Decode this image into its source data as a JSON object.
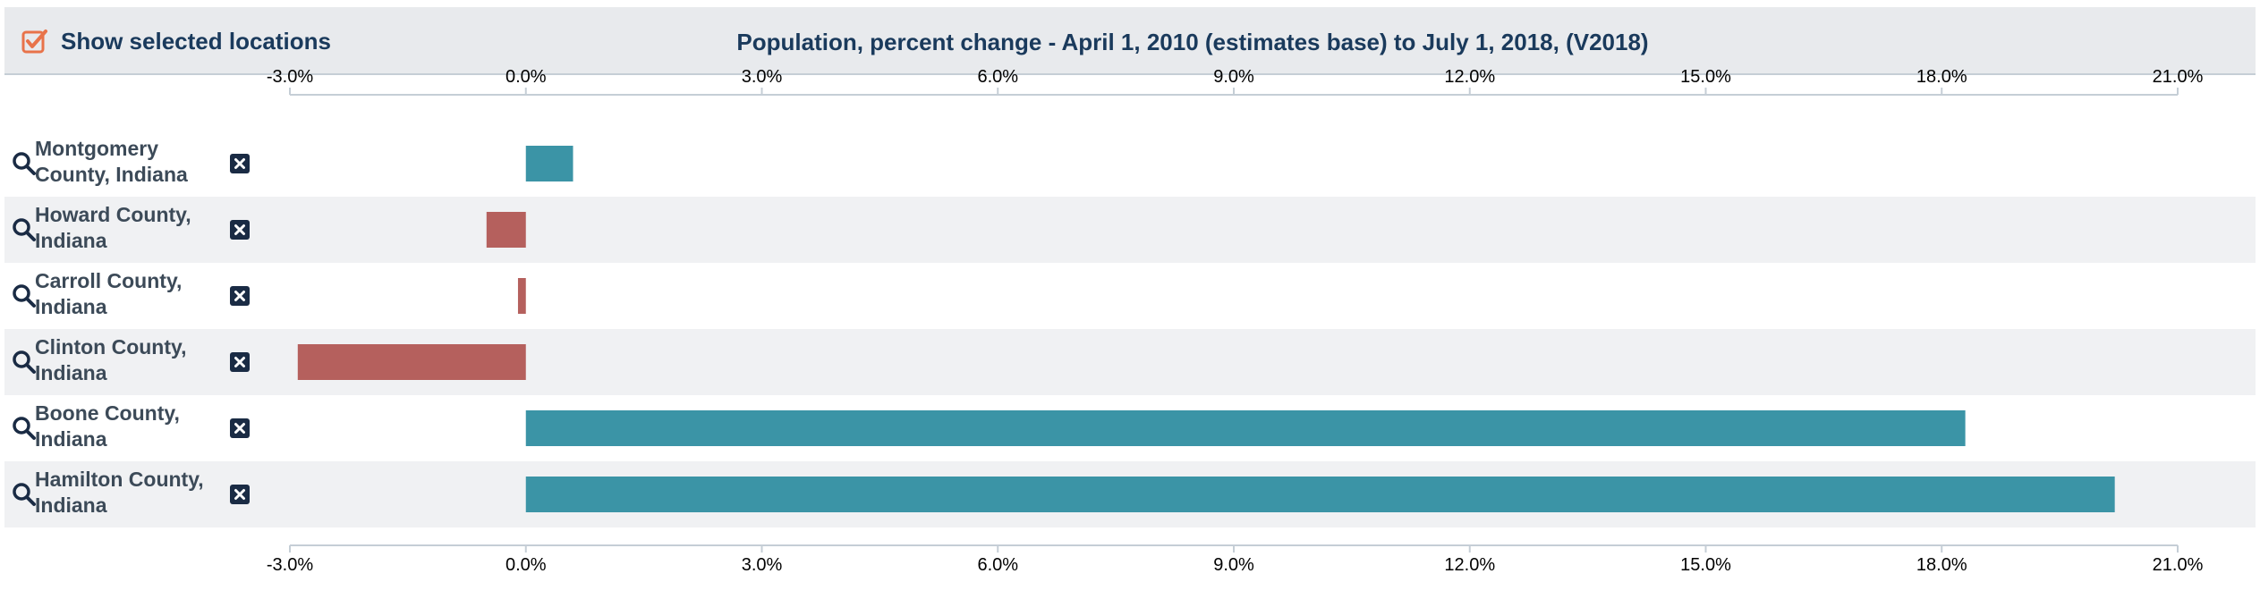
{
  "header": {
    "show_selected_label": "Show selected locations",
    "checkbox_checked": true,
    "checkbox_color": "#e8734a"
  },
  "chart_data": {
    "type": "bar",
    "orientation": "horizontal",
    "title": "Population, percent change - April 1, 2010 (estimates base) to July 1, 2018, (V2018)",
    "categories": [
      "Montgomery County, Indiana",
      "Howard County, Indiana",
      "Carroll County, Indiana",
      "Clinton County, Indiana",
      "Boone County, Indiana",
      "Hamilton County, Indiana"
    ],
    "values": [
      0.6,
      -0.5,
      -0.1,
      -2.9,
      18.3,
      20.2
    ],
    "xlim": [
      -3.0,
      21.0
    ],
    "xticks": [
      -3.0,
      0.0,
      3.0,
      6.0,
      9.0,
      12.0,
      15.0,
      18.0,
      21.0
    ],
    "xtick_labels": [
      "-3.0%",
      "0.0%",
      "3.0%",
      "6.0%",
      "9.0%",
      "12.0%",
      "15.0%",
      "18.0%",
      "21.0%"
    ],
    "axis_positions": [
      "top",
      "bottom"
    ],
    "positive_color": "#3b94a6",
    "negative_color": "#b5605d"
  },
  "rows": [
    {
      "line1": "Montgomery",
      "line2": "County, Indiana"
    },
    {
      "line1": "Howard County,",
      "line2": "Indiana"
    },
    {
      "line1": "Carroll County,",
      "line2": "Indiana"
    },
    {
      "line1": "Clinton County,",
      "line2": "Indiana"
    },
    {
      "line1": "Boone County,",
      "line2": "Indiana"
    },
    {
      "line1": "Hamilton County,",
      "line2": "Indiana"
    }
  ]
}
